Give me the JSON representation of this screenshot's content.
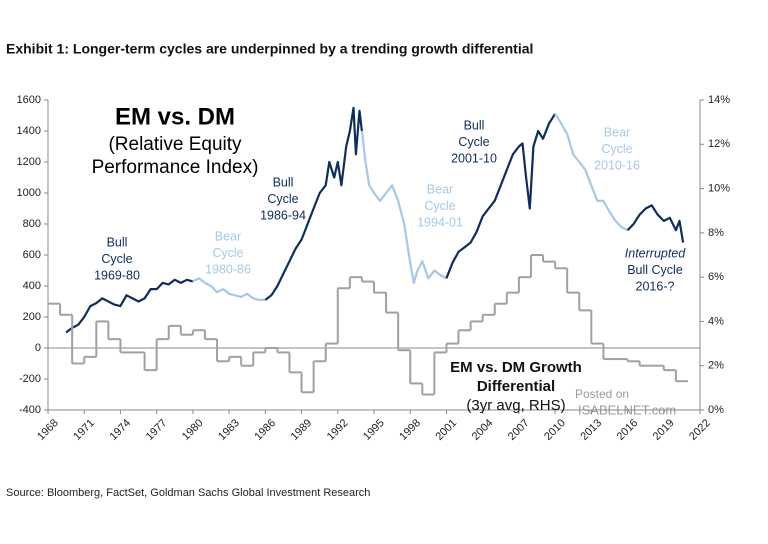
{
  "chart_data": {
    "type": "line",
    "title": "Exhibit 1: Longer-term cycles are underpinned by a trending growth differential",
    "heading_lines": [
      "EM vs. DM",
      "(Relative Equity",
      "Performance Index)"
    ],
    "source": "Source: Bloomberg, FactSet, Goldman Sachs Global Investment Research",
    "watermark": [
      "Posted on",
      "ISABELNET.com"
    ],
    "xlim": [
      1968,
      2022
    ],
    "xticks": [
      1968,
      1971,
      1974,
      1977,
      1980,
      1983,
      1986,
      1989,
      1992,
      1995,
      1998,
      2001,
      2004,
      2007,
      2010,
      2013,
      2016,
      2019,
      2022
    ],
    "ylim": [
      -400,
      1600
    ],
    "yticks": [
      -400,
      -200,
      0,
      200,
      400,
      600,
      800,
      1000,
      1200,
      1400,
      1600
    ],
    "y2lim": [
      0,
      14
    ],
    "y2ticks": [
      {
        "value": 0,
        "label": "0%"
      },
      {
        "value": 2,
        "label": "2%"
      },
      {
        "value": 4,
        "label": "4%"
      },
      {
        "value": 6,
        "label": "6%"
      },
      {
        "value": 8,
        "label": "8%"
      },
      {
        "value": 10,
        "label": "10%"
      },
      {
        "value": 12,
        "label": "12%"
      },
      {
        "value": 14,
        "label": "14%"
      }
    ],
    "series": [
      {
        "label": [
          "Bull",
          "Cycle",
          "1969-80"
        ],
        "color": "#0f2d5c",
        "x": [
          1969.5,
          1970,
          1970.5,
          1971,
          1971.5,
          1972,
          1972.5,
          1973,
          1973.5,
          1974,
          1974.5,
          1975,
          1975.5,
          1976,
          1976.5,
          1977,
          1977.5,
          1978,
          1978.5,
          1979,
          1979.5,
          1980
        ],
        "values": [
          100,
          130,
          150,
          200,
          270,
          290,
          320,
          300,
          280,
          270,
          340,
          320,
          300,
          320,
          380,
          380,
          420,
          410,
          440,
          420,
          440,
          430
        ]
      },
      {
        "label": [
          "Bear",
          "Cycle",
          "1980-86"
        ],
        "color": "#a6c8e6",
        "x": [
          1980,
          1980.5,
          1981,
          1981.5,
          1982,
          1982.5,
          1983,
          1983.5,
          1984,
          1984.5,
          1985,
          1985.5,
          1986
        ],
        "values": [
          430,
          450,
          420,
          400,
          360,
          380,
          350,
          340,
          330,
          350,
          320,
          310,
          310
        ]
      },
      {
        "label": [
          "Bull",
          "Cycle",
          "1986-94"
        ],
        "color": "#0f2d5c",
        "x": [
          1986,
          1986.5,
          1987,
          1987.5,
          1988,
          1988.5,
          1989,
          1989.5,
          1990,
          1990.5,
          1991,
          1991.3,
          1991.7,
          1992,
          1992.3,
          1992.7,
          1993,
          1993.3,
          1993.5,
          1993.8,
          1994
        ],
        "values": [
          310,
          340,
          400,
          480,
          560,
          640,
          700,
          800,
          900,
          1000,
          1050,
          1200,
          1100,
          1200,
          1050,
          1300,
          1400,
          1550,
          1250,
          1530,
          1400
        ]
      },
      {
        "label": [
          "Bear",
          "Cycle",
          "1994-01"
        ],
        "color": "#a6c8e6",
        "x": [
          1994,
          1994.3,
          1994.6,
          1995,
          1995.5,
          1996,
          1996.5,
          1997,
          1997.5,
          1998,
          1998.3,
          1998.6,
          1999,
          1999.5,
          2000,
          2000.5,
          2001
        ],
        "values": [
          1400,
          1200,
          1050,
          1000,
          950,
          1000,
          1050,
          950,
          800,
          550,
          420,
          500,
          560,
          450,
          500,
          470,
          450
        ]
      },
      {
        "label": [
          "Bull",
          "Cycle",
          "2001-10"
        ],
        "color": "#0f2d5c",
        "x": [
          2001,
          2001.5,
          2002,
          2002.5,
          2003,
          2003.5,
          2004,
          2004.5,
          2005,
          2005.5,
          2006,
          2006.5,
          2007,
          2007.3,
          2007.6,
          2007.9,
          2008.2,
          2008.6,
          2009,
          2009.5,
          2010
        ],
        "values": [
          450,
          550,
          620,
          650,
          680,
          750,
          850,
          900,
          950,
          1050,
          1150,
          1250,
          1300,
          1320,
          1100,
          900,
          1300,
          1400,
          1350,
          1450,
          1510
        ]
      },
      {
        "label": [
          "Bear",
          "Cycle",
          "2010-16"
        ],
        "color": "#a6c8e6",
        "x": [
          2010,
          2010.5,
          2011,
          2011.5,
          2012,
          2012.5,
          2013,
          2013.5,
          2014,
          2014.5,
          2015,
          2015.5,
          2016
        ],
        "values": [
          1510,
          1450,
          1380,
          1250,
          1200,
          1150,
          1050,
          950,
          950,
          880,
          820,
          780,
          760
        ]
      },
      {
        "label": [
          "Interrupted",
          "Bull Cycle",
          "2016-?"
        ],
        "color": "#0f2d5c",
        "x": [
          2016,
          2016.5,
          2017,
          2017.5,
          2018,
          2018.5,
          2019,
          2019.5,
          2020,
          2020.3,
          2020.6
        ],
        "values": [
          760,
          800,
          860,
          900,
          920,
          860,
          820,
          840,
          760,
          820,
          680
        ]
      },
      {
        "label": [
          "EM vs. DM Growth",
          "Differential",
          "(3yr avg, RHS)"
        ],
        "color": "#a0a0a0",
        "axis": "y2",
        "step": true,
        "x": [
          1968,
          1969,
          1970,
          1971,
          1972,
          1973,
          1974,
          1975,
          1976,
          1977,
          1978,
          1979,
          1980,
          1981,
          1982,
          1983,
          1984,
          1985,
          1986,
          1987,
          1988,
          1989,
          1990,
          1991,
          1992,
          1993,
          1994,
          1995,
          1996,
          1997,
          1998,
          1999,
          2000,
          2001,
          2002,
          2003,
          2004,
          2005,
          2006,
          2007,
          2008,
          2009,
          2010,
          2011,
          2012,
          2013,
          2014,
          2015,
          2016,
          2017,
          2018,
          2019,
          2020
        ],
        "values": [
          4.8,
          4.3,
          2.1,
          2.4,
          4.0,
          3.2,
          2.6,
          2.6,
          1.8,
          3.2,
          3.8,
          3.4,
          3.6,
          3.2,
          2.2,
          2.4,
          2.0,
          2.6,
          2.8,
          2.6,
          1.7,
          0.8,
          2.2,
          3.0,
          5.5,
          6.0,
          5.8,
          5.3,
          4.4,
          2.7,
          1.2,
          0.7,
          2.6,
          3.0,
          3.6,
          4.0,
          4.3,
          4.8,
          5.3,
          6.0,
          7.0,
          6.7,
          6.4,
          5.3,
          4.5,
          3.0,
          2.3,
          2.3,
          2.2,
          2.0,
          2.0,
          1.8,
          1.3
        ]
      }
    ]
  }
}
